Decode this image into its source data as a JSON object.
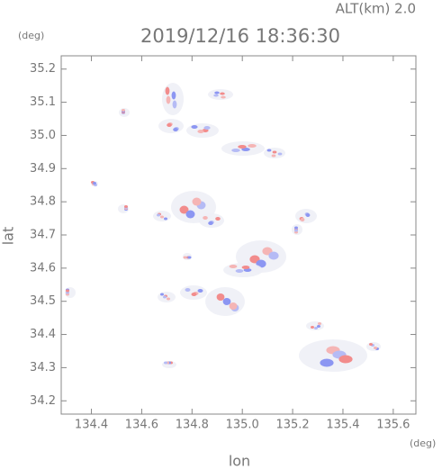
{
  "chart_data": {
    "type": "radar-map",
    "title": "2019/12/16 18:36:30",
    "altitude_label": "ALT(km)  2.0",
    "y_unit": "(deg)",
    "x_unit": "(deg)",
    "xlabel": "lon",
    "ylabel": "lat",
    "xlim": [
      134.28,
      135.69
    ],
    "ylim": [
      34.16,
      35.24
    ],
    "xticks": [
      134.4,
      134.6,
      134.8,
      {
        "value": 135,
        "label": "135.0"
      },
      135.2,
      135.4,
      135.6
    ],
    "yticks": [
      34.2,
      34.3,
      34.4,
      34.5,
      34.6,
      34.7,
      34.8,
      34.9,
      {
        "value": 35,
        "label": "35.0"
      },
      35.1,
      35.2
    ]
  }
}
